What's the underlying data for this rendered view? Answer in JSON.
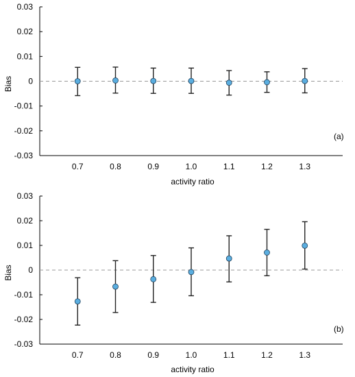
{
  "chart_data": [
    {
      "type": "scatter",
      "panel_label": "(a)",
      "xlabel": "activity ratio",
      "ylabel": "Bias",
      "x": [
        0.7,
        0.8,
        0.9,
        1.0,
        1.1,
        1.2,
        1.3
      ],
      "x_tick_labels": [
        "0.7",
        "0.8",
        "0.9",
        "1.0",
        "1.1",
        "1.2",
        "1.3"
      ],
      "xlim": [
        0.6,
        1.4
      ],
      "ylim": [
        -0.03,
        0.03
      ],
      "y_ticks": [
        -0.03,
        -0.02,
        -0.01,
        0,
        0.01,
        0.02,
        0.03
      ],
      "y_tick_labels": [
        "-0.03",
        "-0.02",
        "-0.01",
        "0",
        "0.01",
        "0.02",
        "0.03"
      ],
      "reference_line": 0,
      "series": [
        {
          "values": [
            0.0,
            0.0003,
            0.0001,
            0.0001,
            -0.0006,
            -0.0004,
            0.0001
          ],
          "error_low": [
            -0.0058,
            -0.0048,
            -0.0049,
            -0.0049,
            -0.0056,
            -0.0045,
            -0.0047
          ],
          "error_high": [
            0.0056,
            0.0057,
            0.0053,
            0.0053,
            0.0043,
            0.0038,
            0.0051
          ]
        }
      ],
      "marker_color": "#5aaee0",
      "grid": false
    },
    {
      "type": "scatter",
      "panel_label": "(b)",
      "xlabel": "activity ratio",
      "ylabel": "Bias",
      "x": [
        0.7,
        0.8,
        0.9,
        1.0,
        1.1,
        1.2,
        1.3
      ],
      "x_tick_labels": [
        "0.7",
        "0.8",
        "0.9",
        "1.0",
        "1.1",
        "1.2",
        "1.3"
      ],
      "xlim": [
        0.6,
        1.4
      ],
      "ylim": [
        -0.03,
        0.03
      ],
      "y_ticks": [
        -0.03,
        -0.02,
        -0.01,
        0,
        0.01,
        0.02,
        0.03
      ],
      "y_tick_labels": [
        "-0.03",
        "-0.02",
        "-0.01",
        "0",
        "0.01",
        "0.02",
        "0.03"
      ],
      "reference_line": 0,
      "series": [
        {
          "values": [
            -0.0127,
            -0.0067,
            -0.0037,
            -0.0008,
            0.0047,
            0.0071,
            0.0099
          ],
          "error_low": [
            -0.0223,
            -0.0172,
            -0.0131,
            -0.0104,
            -0.0048,
            -0.0023,
            0.0004
          ],
          "error_high": [
            -0.0031,
            0.0038,
            0.0059,
            0.009,
            0.0139,
            0.0165,
            0.0196
          ]
        }
      ],
      "marker_color": "#5aaee0",
      "grid": false
    }
  ]
}
